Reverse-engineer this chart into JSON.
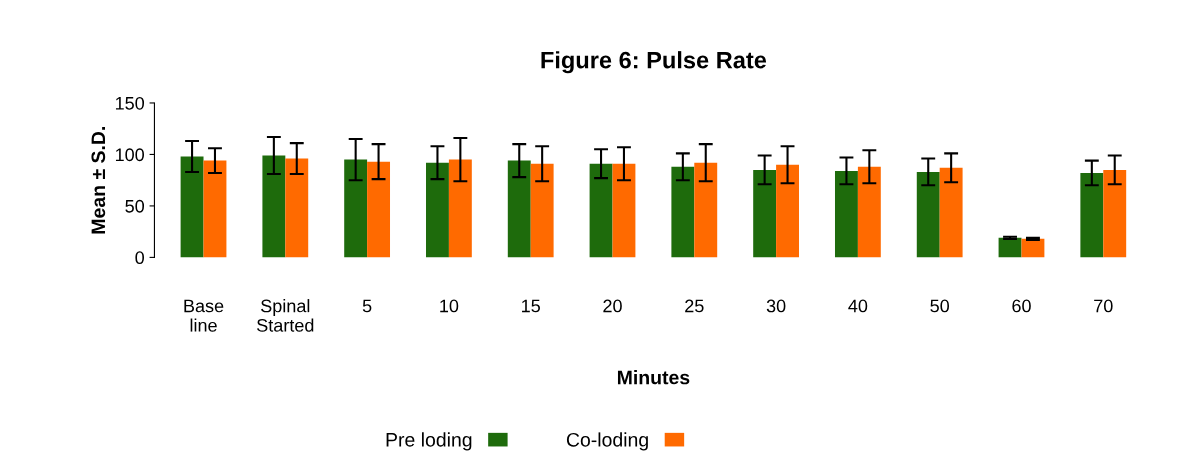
{
  "chart_data": {
    "type": "bar",
    "title": "Figure 6: Pulse Rate",
    "xlabel": "Minutes",
    "ylabel": "Mean ± S.D.",
    "categories": [
      "Base\nline",
      "Spinal\nStarted",
      "5",
      "10",
      "15",
      "20",
      "25",
      "30",
      "40",
      "50",
      "60",
      "70"
    ],
    "series": [
      {
        "name": "Pre loding",
        "color": "#1e6b0c",
        "values": [
          98,
          99,
          95,
          92,
          94,
          91,
          88,
          85,
          84,
          83,
          19,
          82
        ],
        "errors": [
          15,
          18,
          20,
          16,
          16,
          14,
          13,
          14,
          13,
          13,
          1,
          12
        ]
      },
      {
        "name": "Co-loding",
        "color": "#ff6a00",
        "values": [
          94,
          96,
          93,
          95,
          91,
          91,
          92,
          90,
          88,
          87,
          18,
          85
        ],
        "errors": [
          12,
          15,
          17,
          21,
          17,
          16,
          18,
          18,
          16,
          14,
          1,
          14
        ]
      }
    ],
    "ylim": [
      0,
      150
    ],
    "yticks": [
      0,
      50,
      100,
      150
    ],
    "grid": false,
    "legend": "bottom"
  }
}
